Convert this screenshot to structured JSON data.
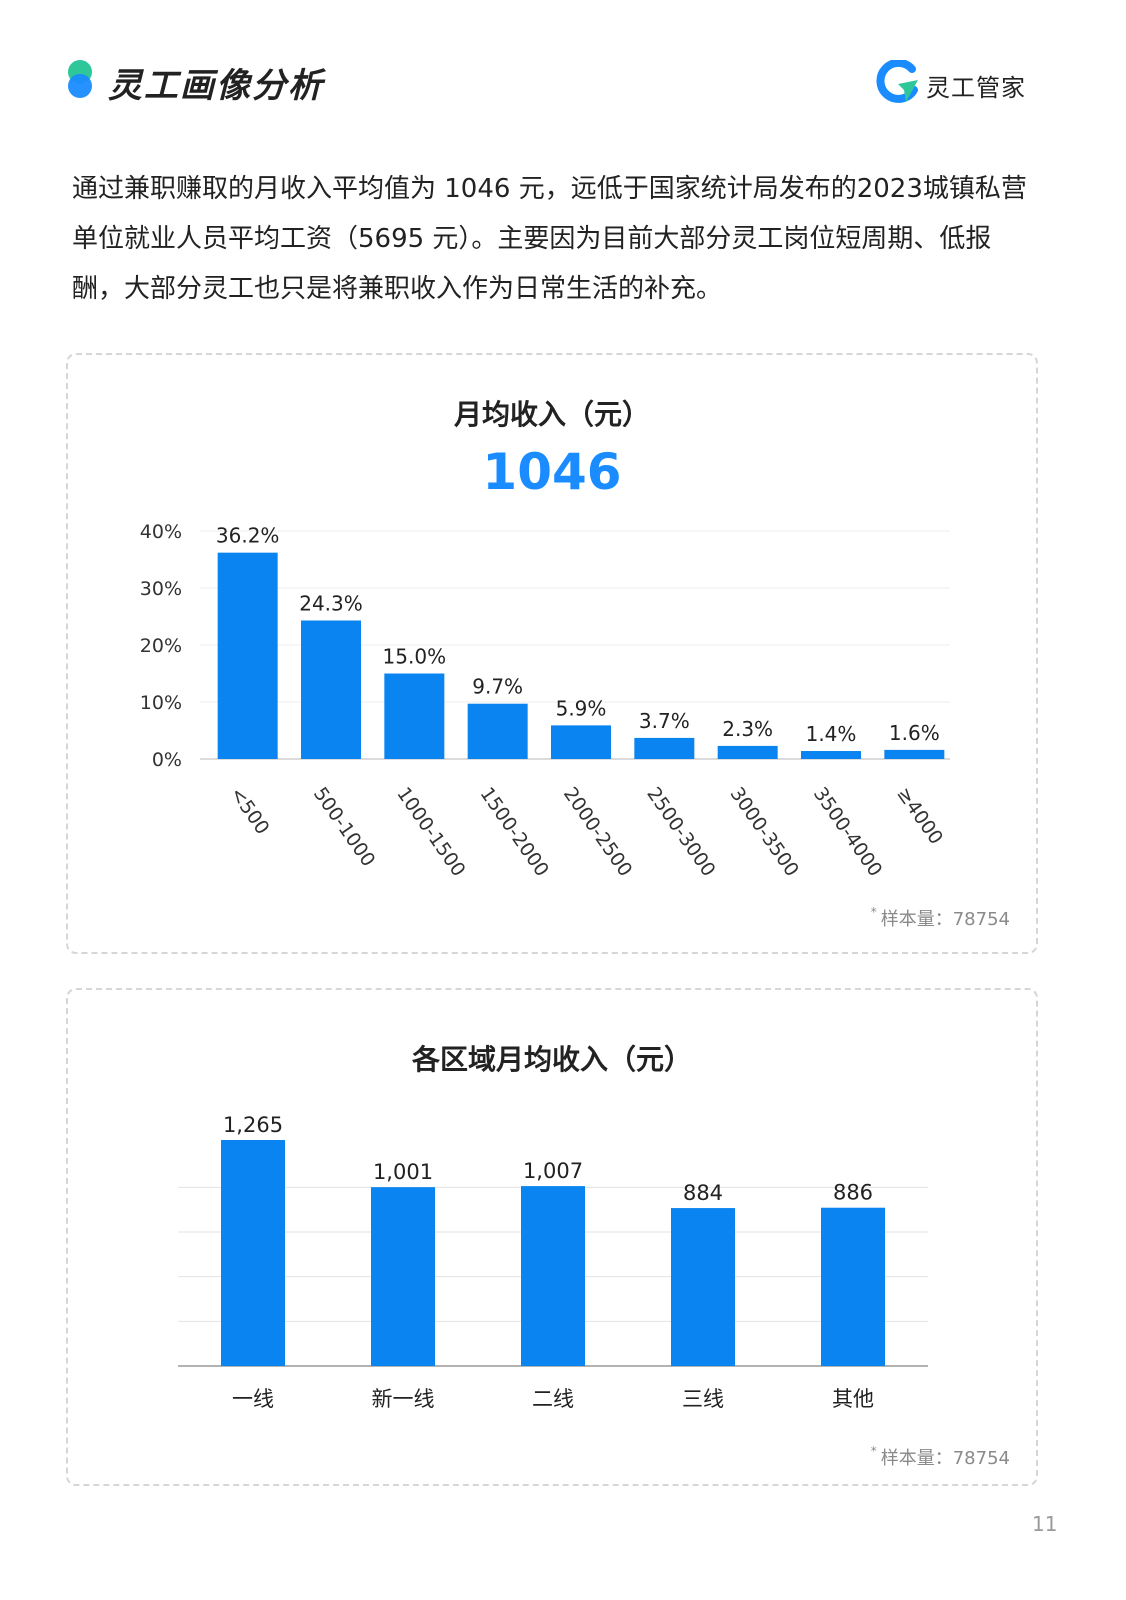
{
  "header": {
    "section_title": "灵工画像分析",
    "brand_name": "灵工管家",
    "brand_icon": "brand-logo-icon"
  },
  "intro_text": "通过兼职赚取的月收入平均值为 1046 元，远低于国家统计局发布的2023城镇私营单位就业人员平均工资（5695 元）。主要因为目前大部分灵工岗位短周期、低报酬，大部分灵工也只是将兼职收入作为日常生活的补充。",
  "chart_data": [
    {
      "type": "bar",
      "title": "月均收入（元）",
      "highlight_value": "1046",
      "categories": [
        "<500",
        "500-1000",
        "1000-1500",
        "1500-2000",
        "2000-2500",
        "2500-3000",
        "3000-3500",
        "3500-4000",
        "≥4000"
      ],
      "values": [
        36.2,
        24.3,
        15.0,
        9.7,
        5.9,
        3.7,
        2.3,
        1.4,
        1.6
      ],
      "data_labels": [
        "36.2%",
        "24.3%",
        "15.0%",
        "9.7%",
        "5.9%",
        "3.7%",
        "2.3%",
        "1.4%",
        "1.6%"
      ],
      "y_ticks": [
        "0%",
        "10%",
        "20%",
        "30%",
        "40%"
      ],
      "y_tick_values": [
        0,
        10,
        20,
        30,
        40
      ],
      "ylim": [
        0,
        40
      ],
      "grid": true,
      "bar_color": "#0a84f0",
      "note": "样本量：78754"
    },
    {
      "type": "bar",
      "title": "各区域月均收入（元）",
      "categories": [
        "一线",
        "新一线",
        "二线",
        "三线",
        "其他"
      ],
      "values": [
        1265,
        1001,
        1007,
        884,
        886
      ],
      "data_labels": [
        "1,265",
        "1,001",
        "1,007",
        "884",
        "886"
      ],
      "y_tick_values": [
        0,
        250,
        500,
        750,
        1000
      ],
      "ylim": [
        0,
        1265
      ],
      "grid": true,
      "bar_color": "#0a84f0",
      "note": "样本量：78754"
    }
  ],
  "page_number": "11"
}
